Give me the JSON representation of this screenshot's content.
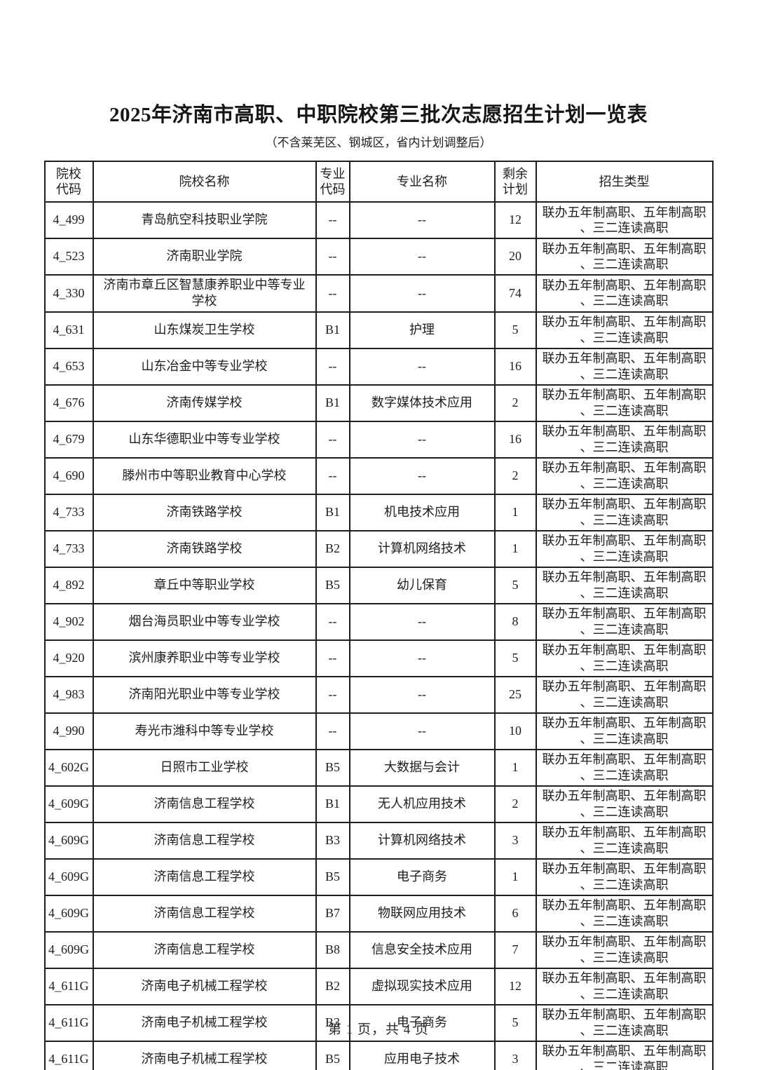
{
  "document": {
    "title": "2025年济南市高职、中职院校第三批次志愿招生计划一览表",
    "subtitle": "（不含莱芜区、钢城区，省内计划调整后）",
    "footer": "第 1 页，共 4 页"
  },
  "table": {
    "headers": [
      "院校\n代码",
      "院校名称",
      "专业\n代码",
      "专业名称",
      "剩余\n计划",
      "招生类型"
    ],
    "admission_type": "联办五年制高职、五年制高职\n、三二连读高职",
    "rows": [
      {
        "code": "4_499",
        "school": "青岛航空科技职业学院",
        "major_code": "--",
        "major": "--",
        "remaining": "12"
      },
      {
        "code": "4_523",
        "school": "济南职业学院",
        "major_code": "--",
        "major": "--",
        "remaining": "20"
      },
      {
        "code": "4_330",
        "school": "济南市章丘区智慧康养职业中等专业学校",
        "major_code": "--",
        "major": "--",
        "remaining": "74"
      },
      {
        "code": "4_631",
        "school": "山东煤炭卫生学校",
        "major_code": "B1",
        "major": "护理",
        "remaining": "5"
      },
      {
        "code": "4_653",
        "school": "山东冶金中等专业学校",
        "major_code": "--",
        "major": "--",
        "remaining": "16"
      },
      {
        "code": "4_676",
        "school": "济南传媒学校",
        "major_code": "B1",
        "major": "数字媒体技术应用",
        "remaining": "2"
      },
      {
        "code": "4_679",
        "school": "山东华德职业中等专业学校",
        "major_code": "--",
        "major": "--",
        "remaining": "16"
      },
      {
        "code": "4_690",
        "school": "滕州市中等职业教育中心学校",
        "major_code": "--",
        "major": "--",
        "remaining": "2"
      },
      {
        "code": "4_733",
        "school": "济南铁路学校",
        "major_code": "B1",
        "major": "机电技术应用",
        "remaining": "1"
      },
      {
        "code": "4_733",
        "school": "济南铁路学校",
        "major_code": "B2",
        "major": "计算机网络技术",
        "remaining": "1"
      },
      {
        "code": "4_892",
        "school": "章丘中等职业学校",
        "major_code": "B5",
        "major": "幼儿保育",
        "remaining": "5"
      },
      {
        "code": "4_902",
        "school": "烟台海员职业中等专业学校",
        "major_code": "--",
        "major": "--",
        "remaining": "8"
      },
      {
        "code": "4_920",
        "school": "滨州康养职业中等专业学校",
        "major_code": "--",
        "major": "--",
        "remaining": "5"
      },
      {
        "code": "4_983",
        "school": "济南阳光职业中等专业学校",
        "major_code": "--",
        "major": "--",
        "remaining": "25"
      },
      {
        "code": "4_990",
        "school": "寿光市潍科中等专业学校",
        "major_code": "--",
        "major": "--",
        "remaining": "10"
      },
      {
        "code": "4_602G",
        "school": "日照市工业学校",
        "major_code": "B5",
        "major": "大数据与会计",
        "remaining": "1"
      },
      {
        "code": "4_609G",
        "school": "济南信息工程学校",
        "major_code": "B1",
        "major": "无人机应用技术",
        "remaining": "2"
      },
      {
        "code": "4_609G",
        "school": "济南信息工程学校",
        "major_code": "B3",
        "major": "计算机网络技术",
        "remaining": "3"
      },
      {
        "code": "4_609G",
        "school": "济南信息工程学校",
        "major_code": "B5",
        "major": "电子商务",
        "remaining": "1"
      },
      {
        "code": "4_609G",
        "school": "济南信息工程学校",
        "major_code": "B7",
        "major": "物联网应用技术",
        "remaining": "6"
      },
      {
        "code": "4_609G",
        "school": "济南信息工程学校",
        "major_code": "B8",
        "major": "信息安全技术应用",
        "remaining": "7"
      },
      {
        "code": "4_611G",
        "school": "济南电子机械工程学校",
        "major_code": "B2",
        "major": "虚拟现实技术应用",
        "remaining": "12"
      },
      {
        "code": "4_611G",
        "school": "济南电子机械工程学校",
        "major_code": "B3",
        "major": "电子商务",
        "remaining": "5"
      },
      {
        "code": "4_611G",
        "school": "济南电子机械工程学校",
        "major_code": "B5",
        "major": "应用电子技术",
        "remaining": "3"
      }
    ]
  }
}
